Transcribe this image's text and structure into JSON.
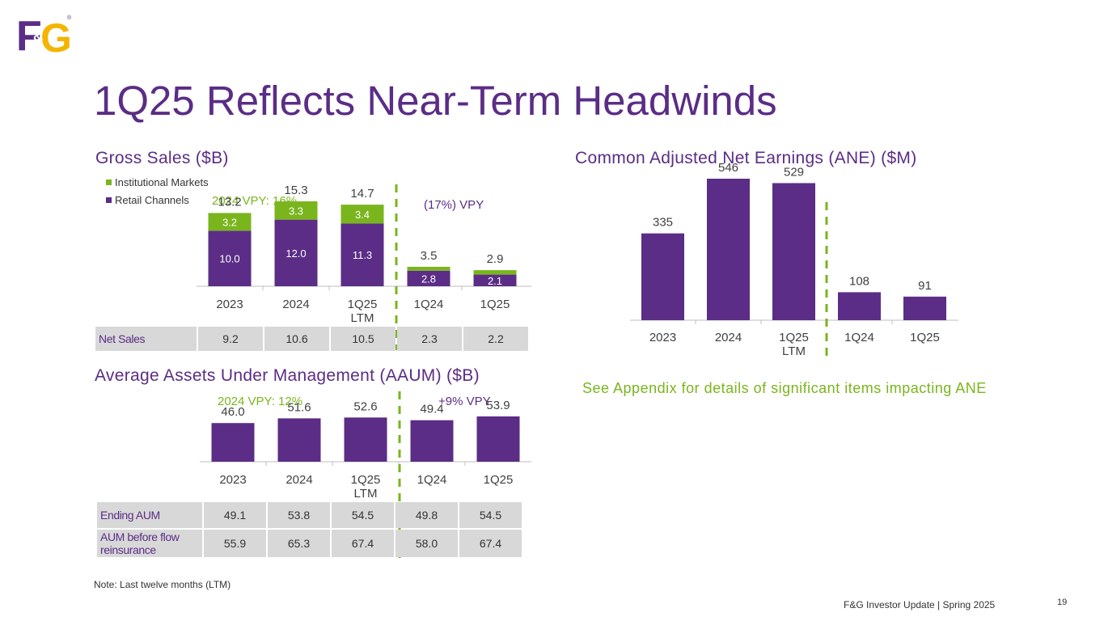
{
  "logo": {
    "text_main": "F",
    "text_amp": "&",
    "text_g": "G",
    "registered": "®",
    "color_purple": "#5b2d86",
    "color_yellow": "#f5b400"
  },
  "title": "1Q25 Reflects Near-Term Headwinds",
  "colors": {
    "purple": "#5b2d86",
    "green": "#7ab51d",
    "divider": "#7ab51d"
  },
  "gross_sales": {
    "heading": "Gross Sales ($B)",
    "legend_institutional": "Institutional Markets",
    "legend_retail": "Retail Channels",
    "callout_left": "2024 VPY: 16%",
    "callout_right": "(17%) VPY"
  },
  "ane": {
    "heading": "Common Adjusted Net Earnings (ANE) ($M)"
  },
  "aaum": {
    "heading": "Average Assets Under Management (AAUM) ($B)",
    "callout_left": "2024 VPY: 12%",
    "callout_right": "+9% VPY"
  },
  "net_sales_table": {
    "label": "Net Sales",
    "values": [
      "9.2",
      "10.6",
      "10.5",
      "2.3",
      "2.2"
    ]
  },
  "aum_table": {
    "rows": [
      {
        "label": "Ending AUM",
        "values": [
          "49.1",
          "53.8",
          "54.5",
          "49.8",
          "54.5"
        ]
      },
      {
        "label_line1": "AUM before flow",
        "label_line2": "reinsurance",
        "values": [
          "55.9",
          "65.3",
          "67.4",
          "58.0",
          "67.4"
        ]
      }
    ]
  },
  "appendix_note": "See Appendix for details of significant items impacting ANE",
  "note": "Note: Last twelve months (LTM)",
  "footer": "F&G Investor Update | Spring 2025",
  "page_number": "19",
  "chart_data": [
    {
      "id": "gross_sales",
      "type": "bar",
      "stacked": true,
      "title": "Gross Sales ($B)",
      "categories": [
        "2023",
        "2024",
        "1Q25\nLTM",
        "1Q24",
        "1Q25"
      ],
      "series": [
        {
          "name": "Retail Channels",
          "color": "#5b2d86",
          "values": [
            10.0,
            12.0,
            11.3,
            2.8,
            2.1
          ],
          "labels": [
            "10.0",
            "12.0",
            "11.3",
            "2.8",
            "2.1"
          ]
        },
        {
          "name": "Institutional Markets",
          "color": "#7ab51d",
          "values": [
            3.2,
            3.3,
            3.4,
            0.7,
            0.8
          ],
          "labels": [
            "3.2",
            "3.3",
            "3.4",
            "",
            ""
          ]
        }
      ],
      "totals": [
        "13.2",
        "15.3",
        "14.7",
        "3.5",
        "2.9"
      ],
      "ylim": [
        0,
        16
      ]
    },
    {
      "id": "ane",
      "type": "bar",
      "title": "Common Adjusted Net Earnings (ANE) ($M)",
      "categories": [
        "2023",
        "2024",
        "1Q25\nLTM",
        "1Q24",
        "1Q25"
      ],
      "series": [
        {
          "name": "ANE",
          "color": "#5b2d86",
          "values": [
            335,
            546,
            529,
            108,
            91
          ]
        }
      ],
      "labels": [
        "335",
        "546",
        "529",
        "108",
        "91"
      ],
      "ylim": [
        0,
        560
      ]
    },
    {
      "id": "aaum",
      "type": "bar",
      "title": "Average Assets Under Management (AAUM) ($B)",
      "categories": [
        "2023",
        "2024",
        "1Q25\nLTM",
        "1Q24",
        "1Q25"
      ],
      "series": [
        {
          "name": "AAUM",
          "color": "#5b2d86",
          "values": [
            46.0,
            51.6,
            52.6,
            49.4,
            53.9
          ]
        }
      ],
      "labels": [
        "46.0",
        "51.6",
        "52.6",
        "49.4",
        "53.9"
      ],
      "ylim": [
        0,
        90
      ]
    }
  ]
}
